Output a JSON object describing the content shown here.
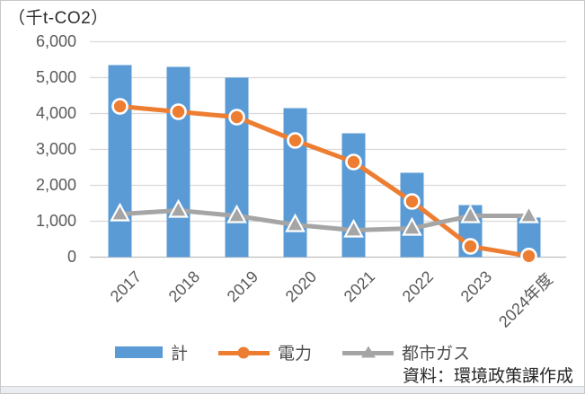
{
  "source_note": "資料：環境政策課作成",
  "colors": {
    "bar_blue": "#5B9BD5",
    "line_orange": "#ED7D31",
    "line_gray": "#A5A5A5",
    "gridline": "#D9D9D9",
    "axis_zero_line": "#BFBFBF",
    "axis_text": "#595959",
    "marker_edge": "#FFFFFF"
  },
  "chart_data": {
    "type": "combo (bar + line)",
    "unit_label": "（千t-CO2）",
    "categories": [
      "2017",
      "2018",
      "2019",
      "2020",
      "2021",
      "2022",
      "2023",
      "2024年度"
    ],
    "series": [
      {
        "name": "計",
        "type": "bar",
        "marker": "none",
        "color": "#5B9BD5",
        "values": [
          5350,
          5300,
          5000,
          4150,
          3450,
          2350,
          1450,
          1100
        ]
      },
      {
        "name": "電力",
        "type": "line",
        "marker": "circle",
        "color": "#ED7D31",
        "values": [
          4200,
          4050,
          3900,
          3250,
          2650,
          1550,
          300,
          30
        ]
      },
      {
        "name": "都市ガス",
        "type": "line",
        "marker": "triangle",
        "color": "#A5A5A5",
        "values": [
          1200,
          1300,
          1150,
          900,
          750,
          800,
          1150,
          1150
        ]
      }
    ],
    "ylim": [
      0,
      6000
    ],
    "yticks": [
      0,
      1000,
      2000,
      3000,
      4000,
      5000,
      6000
    ],
    "ytick_labels": [
      "0",
      "1,000",
      "2,000",
      "3,000",
      "4,000",
      "5,000",
      "6,000"
    ],
    "xlabel": "",
    "ylabel": "",
    "grid": true,
    "legend_position": "bottom"
  }
}
